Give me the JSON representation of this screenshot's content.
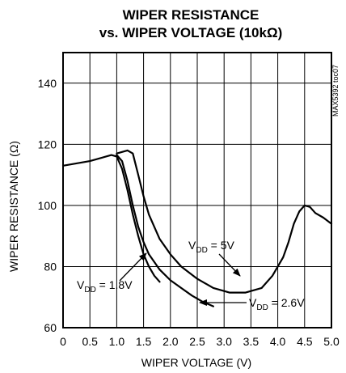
{
  "chart_data": {
    "type": "line",
    "title_line1": "WIPER RESISTANCE",
    "title_line2": "vs. WIPER VOLTAGE (10kΩ)",
    "xlabel": "WIPER VOLTAGE (V)",
    "ylabel": "WIPER RESISTANCE (Ω)",
    "xlim": [
      0,
      5.0
    ],
    "ylim": [
      60,
      150
    ],
    "x_ticks": [
      0,
      0.5,
      1.0,
      1.5,
      2.0,
      2.5,
      3.0,
      3.5,
      4.0,
      4.5,
      5.0
    ],
    "x_tick_labels": [
      "0",
      "0.5",
      "1.0",
      "1.5",
      "2.0",
      "2.5",
      "3.0",
      "3.5",
      "4.0",
      "4.5",
      "5.0"
    ],
    "y_ticks": [
      60,
      80,
      100,
      120,
      140
    ],
    "y_tick_labels": [
      "60",
      "80",
      "100",
      "120",
      "140"
    ],
    "grid": true,
    "side_text": "MAX5392 toc07",
    "series": [
      {
        "name": "VDD = 1.8V",
        "label_main": "V",
        "label_sub": "DD",
        "label_rest": " = 1.8V",
        "points": [
          [
            0,
            113
          ],
          [
            0.5,
            114.5
          ],
          [
            0.9,
            116.5
          ],
          [
            1.0,
            116
          ],
          [
            1.1,
            112
          ],
          [
            1.2,
            105
          ],
          [
            1.3,
            97
          ],
          [
            1.4,
            90
          ],
          [
            1.5,
            84
          ],
          [
            1.6,
            80
          ],
          [
            1.7,
            77
          ],
          [
            1.8,
            75
          ]
        ]
      },
      {
        "name": "VDD = 2.6V",
        "label_main": "V",
        "label_sub": "DD",
        "label_rest": " = 2.6V",
        "points": [
          [
            1.0,
            116.5
          ],
          [
            1.1,
            114.5
          ],
          [
            1.2,
            108
          ],
          [
            1.3,
            100
          ],
          [
            1.4,
            93
          ],
          [
            1.5,
            88
          ],
          [
            1.6,
            84
          ],
          [
            1.8,
            79
          ],
          [
            2.0,
            75.5
          ],
          [
            2.2,
            73
          ],
          [
            2.4,
            70.5
          ],
          [
            2.6,
            68.5
          ],
          [
            2.8,
            67
          ]
        ]
      },
      {
        "name": "VDD = 5V",
        "label_main": "V",
        "label_sub": "DD",
        "label_rest": " = 5V",
        "points": [
          [
            1.0,
            117
          ],
          [
            1.1,
            117.5
          ],
          [
            1.2,
            118
          ],
          [
            1.3,
            117
          ],
          [
            1.4,
            110
          ],
          [
            1.5,
            103
          ],
          [
            1.6,
            97
          ],
          [
            1.8,
            89
          ],
          [
            2.0,
            84
          ],
          [
            2.2,
            80
          ],
          [
            2.5,
            76
          ],
          [
            2.8,
            73
          ],
          [
            3.1,
            71.5
          ],
          [
            3.4,
            71.5
          ],
          [
            3.7,
            73
          ],
          [
            3.9,
            77
          ],
          [
            4.1,
            83
          ],
          [
            4.2,
            88
          ],
          [
            4.3,
            94
          ],
          [
            4.4,
            98
          ],
          [
            4.5,
            100
          ],
          [
            4.6,
            99.5
          ],
          [
            4.7,
            97.5
          ],
          [
            4.85,
            96
          ],
          [
            5.0,
            94
          ]
        ]
      }
    ]
  }
}
